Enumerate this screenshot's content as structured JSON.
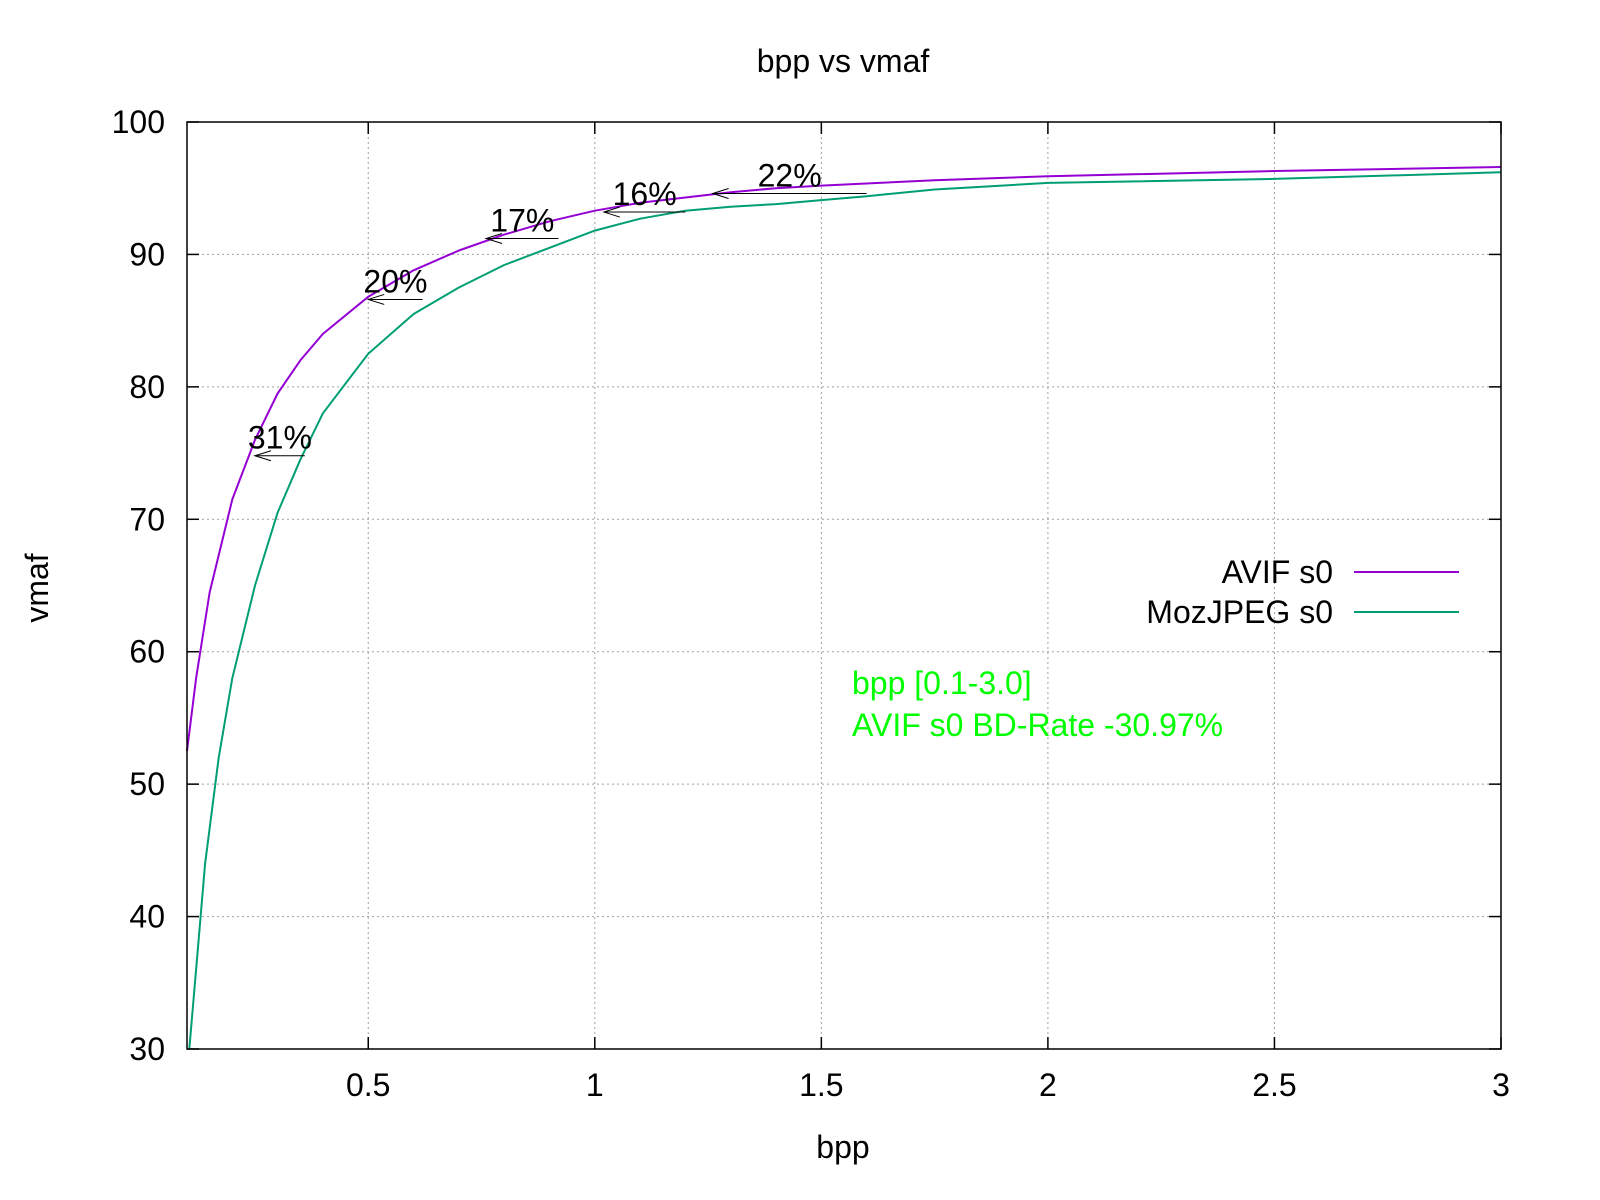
{
  "chart_data": {
    "type": "line",
    "title": "bpp vs vmaf",
    "xlabel": "bpp",
    "ylabel": "vmaf",
    "xlim": [
      0.1,
      3.0
    ],
    "ylim": [
      30,
      100
    ],
    "xticks": [
      0.5,
      1,
      1.5,
      2,
      2.5,
      3
    ],
    "xtick_labels": [
      "0.5",
      "1",
      "1.5",
      "2",
      "2.5",
      "3"
    ],
    "yticks": [
      30,
      40,
      50,
      60,
      70,
      80,
      90,
      100
    ],
    "ytick_labels": [
      "30",
      "40",
      "50",
      "60",
      "70",
      "80",
      "90",
      "100"
    ],
    "grid": true,
    "legend_position": "right",
    "series": [
      {
        "name": "AVIF s0",
        "color": "#9400d3",
        "points": [
          [
            0.1,
            52.5
          ],
          [
            0.12,
            58
          ],
          [
            0.15,
            64.5
          ],
          [
            0.2,
            71.5
          ],
          [
            0.25,
            76
          ],
          [
            0.3,
            79.5
          ],
          [
            0.35,
            82
          ],
          [
            0.4,
            84
          ],
          [
            0.5,
            86.8
          ],
          [
            0.6,
            88.8
          ],
          [
            0.7,
            90.3
          ],
          [
            0.8,
            91.5
          ],
          [
            0.9,
            92.5
          ],
          [
            1.0,
            93.3
          ],
          [
            1.1,
            93.9
          ],
          [
            1.2,
            94.3
          ],
          [
            1.3,
            94.7
          ],
          [
            1.4,
            95.0
          ],
          [
            1.5,
            95.2
          ],
          [
            1.75,
            95.6
          ],
          [
            2.0,
            95.9
          ],
          [
            2.5,
            96.3
          ],
          [
            3.0,
            96.6
          ]
        ]
      },
      {
        "name": "MozJPEG s0",
        "color": "#009e73",
        "points": [
          [
            0.105,
            30
          ],
          [
            0.12,
            36
          ],
          [
            0.14,
            44
          ],
          [
            0.17,
            52
          ],
          [
            0.2,
            58
          ],
          [
            0.25,
            65
          ],
          [
            0.3,
            70.5
          ],
          [
            0.35,
            74.5
          ],
          [
            0.4,
            78
          ],
          [
            0.5,
            82.5
          ],
          [
            0.6,
            85.5
          ],
          [
            0.7,
            87.5
          ],
          [
            0.8,
            89.2
          ],
          [
            0.9,
            90.5
          ],
          [
            1.0,
            91.8
          ],
          [
            1.1,
            92.7
          ],
          [
            1.2,
            93.3
          ],
          [
            1.3,
            93.6
          ],
          [
            1.4,
            93.8
          ],
          [
            1.5,
            94.1
          ],
          [
            1.6,
            94.4
          ],
          [
            1.75,
            94.9
          ],
          [
            2.0,
            95.4
          ],
          [
            2.5,
            95.7
          ],
          [
            3.0,
            96.2
          ]
        ]
      }
    ],
    "annotations": [
      {
        "label": "31%",
        "y": 74.8,
        "x_from": 0.36,
        "x_to": 0.25
      },
      {
        "label": "20%",
        "y": 86.6,
        "x_from": 0.62,
        "x_to": 0.5
      },
      {
        "label": "17%",
        "y": 91.2,
        "x_from": 0.92,
        "x_to": 0.76
      },
      {
        "label": "16%",
        "y": 93.2,
        "x_from": 1.2,
        "x_to": 1.02
      },
      {
        "label": "22%",
        "y": 94.6,
        "x_from": 1.6,
        "x_to": 1.26
      }
    ],
    "notes": [
      "bpp [0.1-3.0]",
      "AVIF s0 BD-Rate -30.97%"
    ],
    "notes_color": "#00ff00"
  }
}
